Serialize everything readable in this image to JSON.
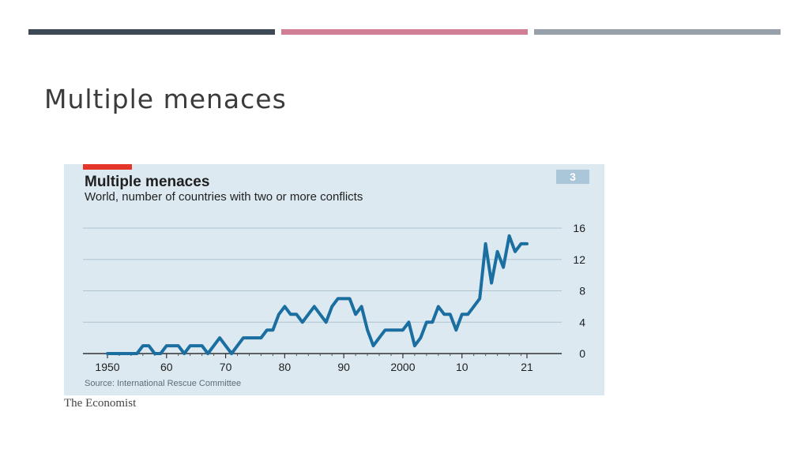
{
  "slide": {
    "title": "Multiple menaces",
    "accent_colors": [
      "#3d4a55",
      "#d17e97",
      "#98a0aa"
    ]
  },
  "figure": {
    "title": "Multiple menaces",
    "subtitle": "World, number of countries with two or more conflicts",
    "number": "3",
    "source": "Source: International Rescue Committee",
    "logo_text": "The Economist"
  },
  "chart_data": {
    "type": "line",
    "title": "Multiple menaces",
    "subtitle": "World, number of countries with two or more conflicts",
    "xlabel": "",
    "ylabel": "",
    "xlim": [
      1950,
      2021
    ],
    "ylim": [
      0,
      16
    ],
    "x_tick_labels": [
      "1950",
      "60",
      "70",
      "80",
      "90",
      "2000",
      "10",
      "21"
    ],
    "x_ticks": [
      1950,
      1960,
      1970,
      1980,
      1990,
      2000,
      2010,
      2021
    ],
    "y_ticks": [
      0,
      4,
      8,
      12,
      16
    ],
    "grid": true,
    "y_axis_side": "right",
    "line_color": "#1a6ea0",
    "series": [
      {
        "x": [
          1950,
          1951,
          1952,
          1953,
          1954,
          1955,
          1956,
          1957,
          1958,
          1959,
          1960,
          1961,
          1962,
          1963,
          1964,
          1965,
          1966,
          1967,
          1968,
          1969,
          1970,
          1971,
          1972,
          1973,
          1974,
          1975,
          1976,
          1977,
          1978,
          1979,
          1980,
          1981,
          1982,
          1983,
          1984,
          1985,
          1986,
          1987,
          1988,
          1989,
          1990,
          1991,
          1992,
          1993,
          1994,
          1995,
          1996,
          1997,
          1998,
          1999,
          2000,
          2001,
          2002,
          2003,
          2004,
          2005,
          2006,
          2007,
          2008,
          2009,
          2010,
          2011,
          2012,
          2013,
          2014,
          2015,
          2016,
          2017,
          2018,
          2019,
          2020,
          2021
        ],
        "values": [
          0,
          0,
          0,
          0,
          0,
          0,
          1,
          1,
          0,
          0,
          1,
          1,
          1,
          0,
          1,
          1,
          1,
          0,
          1,
          2,
          1,
          0,
          1,
          2,
          2,
          2,
          2,
          3,
          3,
          5,
          6,
          5,
          5,
          4,
          5,
          6,
          5,
          4,
          6,
          7,
          7,
          7,
          5,
          6,
          3,
          1,
          2,
          3,
          3,
          3,
          3,
          4,
          1,
          2,
          4,
          4,
          6,
          5,
          5,
          3,
          5,
          5,
          6,
          7,
          14,
          9,
          13,
          11,
          15,
          13,
          14,
          14
        ]
      }
    ]
  }
}
